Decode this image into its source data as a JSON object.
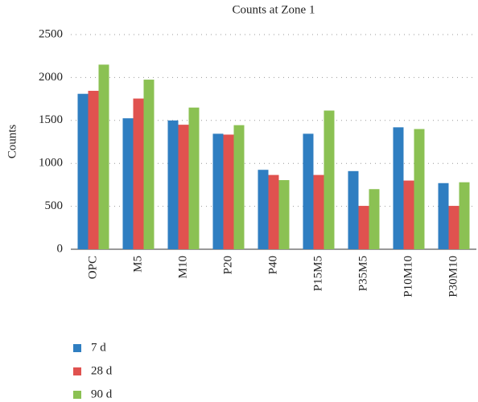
{
  "chart_data": {
    "type": "bar",
    "title": "Counts at Zone 1",
    "y_label": "Counts",
    "categories": [
      "OPC",
      "M5",
      "M10",
      "P20",
      "P40",
      "P15M5",
      "P35M5",
      "P10M10",
      "P30M10"
    ],
    "series": [
      {
        "name": "7 d",
        "color": "#2f7ec1",
        "values": [
          1810,
          1525,
          1500,
          1345,
          925,
          1345,
          910,
          1420,
          770
        ]
      },
      {
        "name": "28 d",
        "color": "#e0524f",
        "values": [
          1845,
          1755,
          1450,
          1335,
          865,
          865,
          505,
          800,
          505
        ]
      },
      {
        "name": "90 d",
        "color": "#8bc153",
        "values": [
          2150,
          1975,
          1650,
          1445,
          805,
          1615,
          700,
          1400,
          780
        ]
      }
    ],
    "ylim": [
      0,
      2500
    ],
    "yticks": [
      0,
      500,
      1000,
      1500,
      2000,
      2500
    ],
    "grid": true,
    "legend": "bottom-left"
  }
}
